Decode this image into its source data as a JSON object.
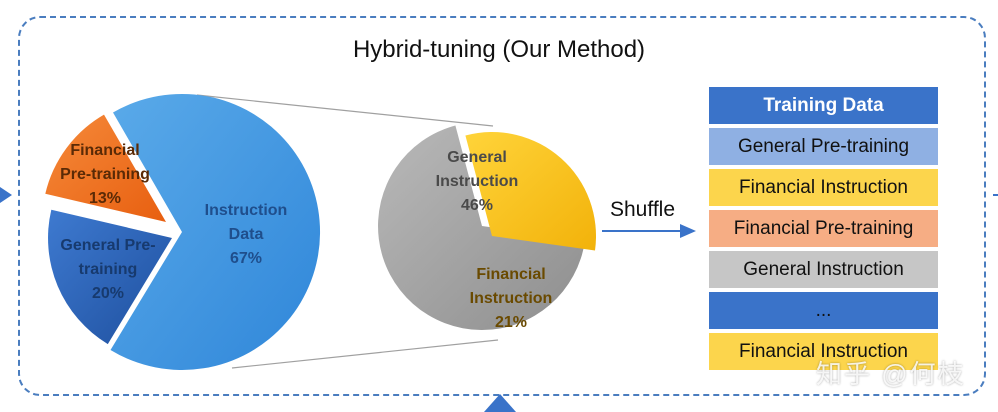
{
  "title": "Hybrid-tuning (Our Method)",
  "shuffle_label": "Shuffle",
  "watermark": "知乎 @何枝",
  "main_pie": {
    "slices": [
      {
        "label_lines": [
          "Instruction",
          "Data"
        ],
        "percent": "67%",
        "value": 67,
        "color": "#3d8fe0"
      },
      {
        "label_lines": [
          "General Pre-",
          "training"
        ],
        "percent": "20%",
        "value": 20,
        "color": "#2c62b6"
      },
      {
        "label_lines": [
          "Financial",
          "Pre-training"
        ],
        "percent": "13%",
        "value": 13,
        "color": "#f07020"
      }
    ]
  },
  "detail_pie": {
    "slices": [
      {
        "label_lines": [
          "General",
          "Instruction"
        ],
        "percent": "46%",
        "value": 46,
        "color": "#a9a9a9"
      },
      {
        "label_lines": [
          "Financial",
          "Instruction"
        ],
        "percent": "21%",
        "value": 21,
        "color": "#f5c015"
      }
    ]
  },
  "training_data": {
    "header": "Training Data",
    "rows": [
      {
        "label": "General Pre-training",
        "color": "#8fb0e3"
      },
      {
        "label": "Financial Instruction",
        "color": "#fcd54c"
      },
      {
        "label": "Financial Pre-training",
        "color": "#f6ad84"
      },
      {
        "label": "General Instruction",
        "color": "#c6c6c6"
      },
      {
        "label": "...",
        "color": "#3a73c9"
      },
      {
        "label": "Financial Instruction",
        "color": "#fcd54c"
      }
    ]
  }
}
